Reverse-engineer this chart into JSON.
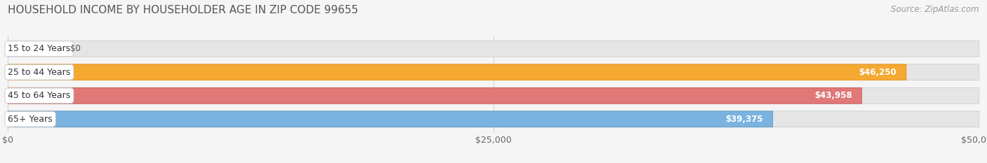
{
  "title": "HOUSEHOLD INCOME BY HOUSEHOLDER AGE IN ZIP CODE 99655",
  "source": "Source: ZipAtlas.com",
  "categories": [
    "15 to 24 Years",
    "25 to 44 Years",
    "45 to 64 Years",
    "65+ Years"
  ],
  "values": [
    0,
    46250,
    43958,
    39375
  ],
  "labels": [
    "$0",
    "$46,250",
    "$43,958",
    "$39,375"
  ],
  "bar_colors": [
    "#f4a0b0",
    "#f5a832",
    "#e07878",
    "#7ab3e0"
  ],
  "bar_edge_colors": [
    "#dda0b0",
    "#e09820",
    "#c85858",
    "#5a93c0"
  ],
  "xlim": [
    0,
    50000
  ],
  "xticks": [
    0,
    25000,
    50000
  ],
  "xticklabels": [
    "$0",
    "$25,000",
    "$50,000"
  ],
  "bg_color": "#f5f5f5",
  "bar_bg_color": "#e5e5e5",
  "bar_bg_edge_color": "#cccccc",
  "title_fontsize": 11,
  "source_fontsize": 8.5,
  "label_fontsize": 8.5,
  "tick_fontsize": 9,
  "category_fontsize": 9
}
